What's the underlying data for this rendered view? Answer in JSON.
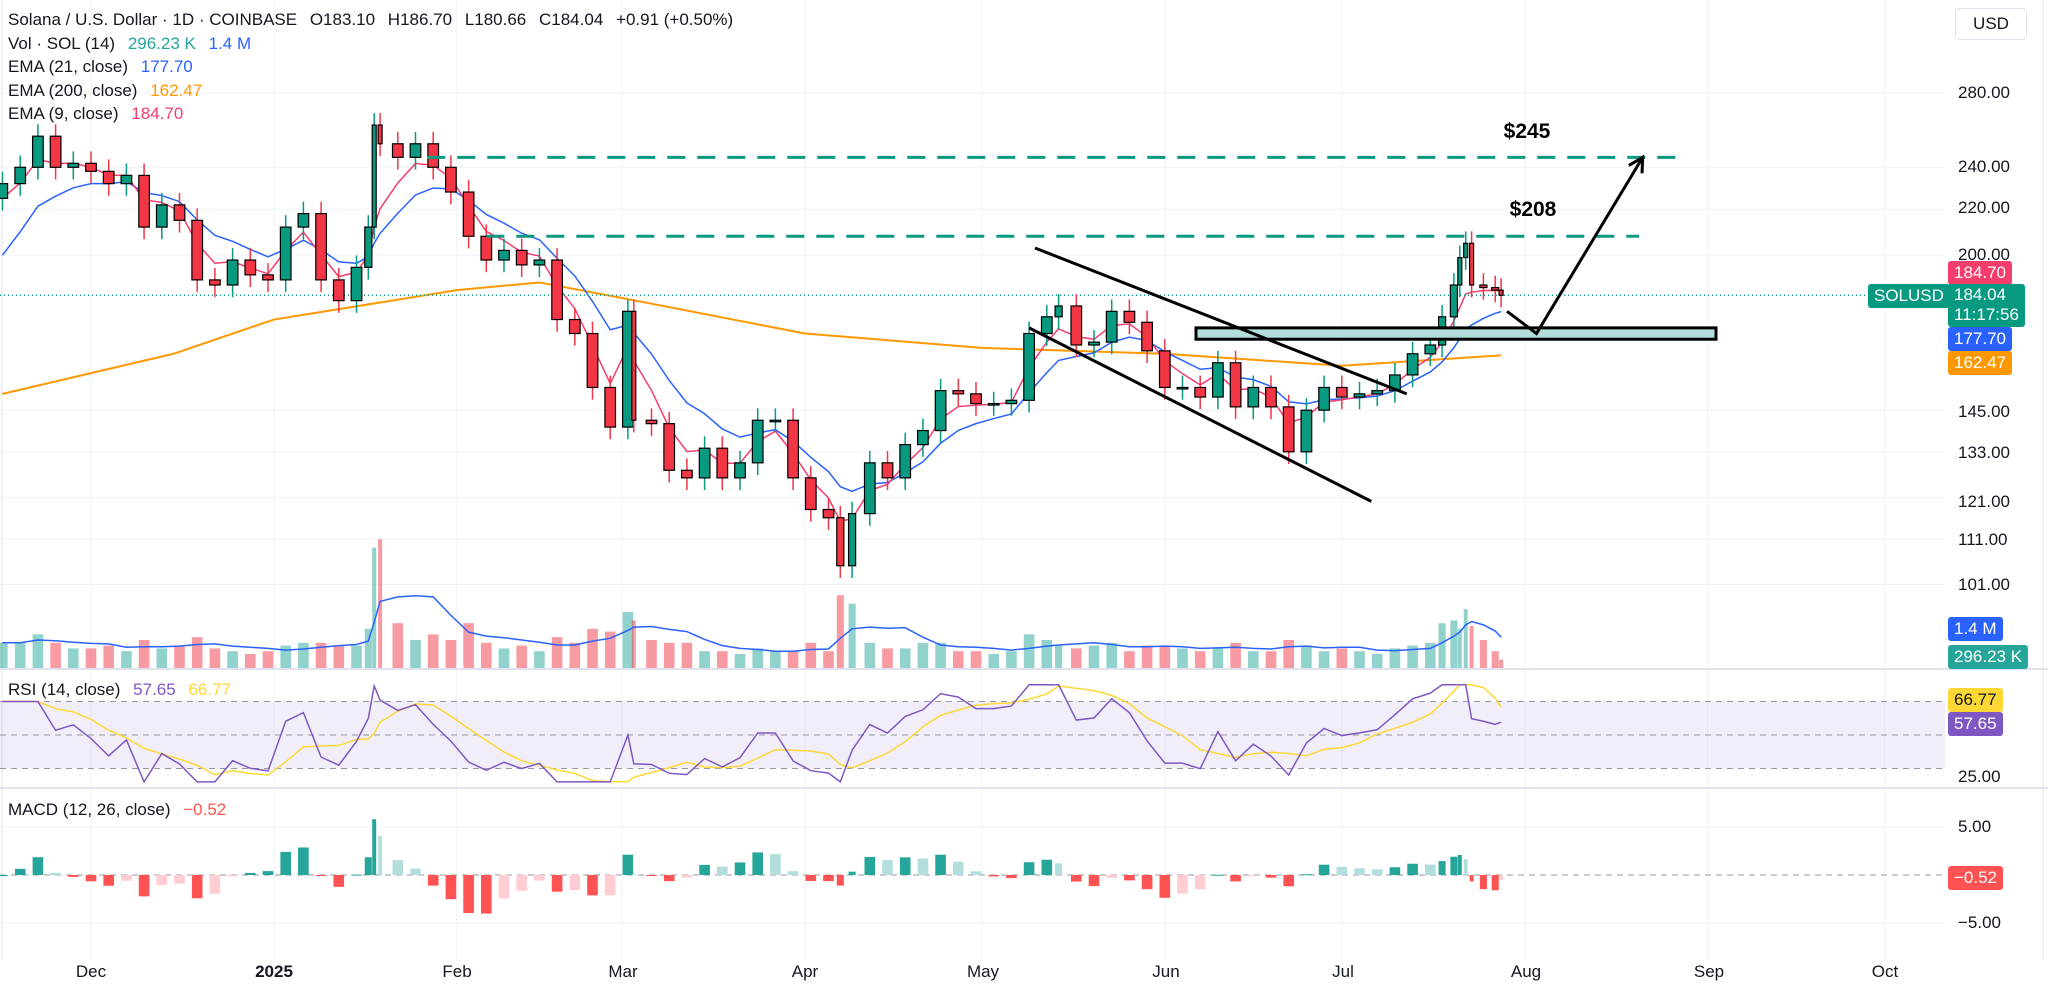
{
  "header": {
    "symbol_title": "Solana / U.S. Dollar · 1D · COINBASE",
    "open": "O183.10",
    "high": "H186.70",
    "low": "L180.66",
    "close": "C184.04",
    "change": "+0.91 (+0.50%)",
    "currency_button": "USD"
  },
  "legend": {
    "volume": {
      "label": "Vol · SOL (14)",
      "value": "296.23 K",
      "ma": "1.4 M"
    },
    "ema21": {
      "label": "EMA (21, close)",
      "value": "177.70"
    },
    "ema200": {
      "label": "EMA (200, close)",
      "value": "162.47"
    },
    "ema9": {
      "label": "EMA (9, close)",
      "value": "184.70"
    },
    "rsi": {
      "label": "RSI (14, close)",
      "value": "57.65",
      "ma": "66.77"
    },
    "macd": {
      "label": "MACD (12, 26, close)",
      "value": "−0.52"
    }
  },
  "price_tags": {
    "ema9": "184.70",
    "symbol": "SOLUSD",
    "last": "184.04",
    "countdown": "11:17:56",
    "ema21": "177.70",
    "ema200": "162.47",
    "vol_ma": "1.4 M",
    "vol": "296.23 K",
    "rsi_ma": "66.77",
    "rsi": "57.65",
    "macd": "−0.52"
  },
  "annotations": {
    "target_high": "$245",
    "target_mid": "$208"
  },
  "colors": {
    "up": "#089981",
    "down": "#f23645",
    "ema9": "#f23d6d",
    "ema21": "#2962ff",
    "ema200": "#ff9800",
    "rsi": "#7e57c2",
    "rsi_ma": "#fdd835",
    "annotation_line": "#089981",
    "zone": "#b2dfdb"
  },
  "chart_data": [
    {
      "type": "candlestick",
      "title": "Solana / U.S. Dollar · 1D · COINBASE",
      "y_scale": "log",
      "y_ticks": [
        "280.00",
        "240.00",
        "220.00",
        "200.00",
        "145.00",
        "133.00",
        "121.00",
        "111.00",
        "101.00"
      ],
      "x_ticks": [
        "Dec",
        "2025",
        "Feb",
        "Mar",
        "Apr",
        "May",
        "Jun",
        "Jul",
        "Aug",
        "Sep",
        "Oct"
      ],
      "grid": true,
      "series_close": [
        [
          "2024-11-16",
          232,
          0.9
        ],
        [
          "2024-11-19",
          240,
          0.9
        ],
        [
          "2024-11-22",
          256,
          1.2
        ],
        [
          "2024-11-25",
          240,
          0.9
        ],
        [
          "2024-11-28",
          242,
          0.7
        ],
        [
          "2024-12-01",
          238,
          0.7
        ],
        [
          "2024-12-04",
          232,
          0.8
        ],
        [
          "2024-12-07",
          236,
          0.6
        ],
        [
          "2024-12-10",
          212,
          1.0
        ],
        [
          "2024-12-13",
          222,
          0.7
        ],
        [
          "2024-12-16",
          215,
          0.8
        ],
        [
          "2024-12-19",
          190,
          1.1
        ],
        [
          "2024-12-22",
          188,
          0.7
        ],
        [
          "2024-12-25",
          198,
          0.6
        ],
        [
          "2024-12-28",
          192,
          0.5
        ],
        [
          "2024-12-31",
          190,
          0.6
        ],
        [
          "2025-01-03",
          212,
          0.8
        ],
        [
          "2025-01-06",
          218,
          0.9
        ],
        [
          "2025-01-09",
          190,
          0.9
        ],
        [
          "2025-01-12",
          182,
          0.8
        ],
        [
          "2025-01-15",
          195,
          0.8
        ],
        [
          "2025-01-17",
          212,
          1.4
        ],
        [
          "2025-01-18",
          262,
          4.3
        ],
        [
          "2025-01-19",
          252,
          4.6
        ],
        [
          "2025-01-22",
          245,
          1.6
        ],
        [
          "2025-01-25",
          252,
          1.0
        ],
        [
          "2025-01-28",
          240,
          1.2
        ],
        [
          "2025-01-31",
          228,
          1.0
        ],
        [
          "2025-02-03",
          208,
          1.6
        ],
        [
          "2025-02-06",
          198,
          0.9
        ],
        [
          "2025-02-09",
          202,
          0.7
        ],
        [
          "2025-02-12",
          196,
          0.8
        ],
        [
          "2025-02-15",
          198,
          0.6
        ],
        [
          "2025-02-18",
          175,
          1.1
        ],
        [
          "2025-02-21",
          170,
          0.9
        ],
        [
          "2025-02-24",
          152,
          1.4
        ],
        [
          "2025-02-27",
          140,
          1.3
        ],
        [
          "2025-03-02",
          178,
          2.0
        ],
        [
          "2025-03-03",
          142,
          1.7
        ],
        [
          "2025-03-06",
          141,
          1.0
        ],
        [
          "2025-03-09",
          128,
          0.9
        ],
        [
          "2025-03-12",
          126,
          0.9
        ],
        [
          "2025-03-15",
          134,
          0.6
        ],
        [
          "2025-03-18",
          126,
          0.6
        ],
        [
          "2025-03-21",
          130,
          0.5
        ],
        [
          "2025-03-24",
          142,
          0.7
        ],
        [
          "2025-03-27",
          142,
          0.6
        ],
        [
          "2025-03-30",
          126,
          0.6
        ],
        [
          "2025-04-02",
          118,
          0.9
        ],
        [
          "2025-04-05",
          116,
          0.6
        ],
        [
          "2025-04-07",
          105,
          2.6
        ],
        [
          "2025-04-09",
          117,
          2.3
        ],
        [
          "2025-04-12",
          130,
          0.9
        ],
        [
          "2025-04-15",
          126,
          0.7
        ],
        [
          "2025-04-18",
          135,
          0.7
        ],
        [
          "2025-04-21",
          139,
          0.9
        ],
        [
          "2025-04-24",
          151,
          0.9
        ],
        [
          "2025-04-27",
          150,
          0.6
        ],
        [
          "2025-04-30",
          147,
          0.6
        ],
        [
          "2025-05-03",
          147,
          0.5
        ],
        [
          "2025-05-06",
          148,
          0.6
        ],
        [
          "2025-05-09",
          170,
          1.2
        ],
        [
          "2025-05-12",
          176,
          1.0
        ],
        [
          "2025-05-14",
          180,
          0.8
        ],
        [
          "2025-05-17",
          166,
          0.7
        ],
        [
          "2025-05-20",
          167,
          0.8
        ],
        [
          "2025-05-23",
          178,
          0.9
        ],
        [
          "2025-05-26",
          174,
          0.6
        ],
        [
          "2025-05-29",
          164,
          0.8
        ],
        [
          "2025-06-01",
          152,
          0.8
        ],
        [
          "2025-06-04",
          152,
          0.7
        ],
        [
          "2025-06-07",
          149,
          0.6
        ],
        [
          "2025-06-10",
          160,
          0.7
        ],
        [
          "2025-06-13",
          146,
          0.9
        ],
        [
          "2025-06-16",
          152,
          0.6
        ],
        [
          "2025-06-19",
          146,
          0.6
        ],
        [
          "2025-06-22",
          133,
          1.0
        ],
        [
          "2025-06-25",
          145,
          0.8
        ],
        [
          "2025-06-28",
          152,
          0.6
        ],
        [
          "2025-07-01",
          149,
          0.7
        ],
        [
          "2025-07-04",
          150,
          0.6
        ],
        [
          "2025-07-07",
          151,
          0.5
        ],
        [
          "2025-07-10",
          156,
          0.7
        ],
        [
          "2025-07-13",
          163,
          0.8
        ],
        [
          "2025-07-16",
          166,
          0.9
        ],
        [
          "2025-07-18",
          176,
          1.6
        ],
        [
          "2025-07-20",
          188,
          1.7
        ],
        [
          "2025-07-21",
          199,
          1.4
        ],
        [
          "2025-07-22",
          205,
          2.1
        ],
        [
          "2025-07-23",
          188,
          1.5
        ],
        [
          "2025-07-25",
          187,
          1.0
        ],
        [
          "2025-07-27",
          186,
          0.6
        ],
        [
          "2025-07-28",
          184.04,
          0.3
        ]
      ],
      "series_columns": [
        "date",
        "close",
        "volume_millions"
      ],
      "ema200": [
        [
          "2024-11-16",
          150
        ],
        [
          "2024-12-15",
          163
        ],
        [
          "2025-01-01",
          175
        ],
        [
          "2025-02-01",
          186
        ],
        [
          "2025-02-15",
          189
        ],
        [
          "2025-03-01",
          183
        ],
        [
          "2025-04-01",
          170
        ],
        [
          "2025-05-01",
          165
        ],
        [
          "2025-06-01",
          163
        ],
        [
          "2025-07-01",
          159
        ],
        [
          "2025-07-28",
          162.47
        ]
      ],
      "levels": [
        {
          "label": "$245",
          "price": 245
        },
        {
          "label": "$208",
          "price": 208
        }
      ],
      "support_zone": [
        168,
        172
      ],
      "channel": {
        "upper": [
          [
            "2025-05-10",
            203
          ],
          [
            "2025-07-12",
            150
          ]
        ],
        "lower": [
          [
            "2025-05-09",
            172
          ],
          [
            "2025-07-06",
            120
          ]
        ]
      },
      "projection": [
        [
          "2025-07-29",
          178
        ],
        [
          "2025-08-03",
          170
        ],
        [
          "2025-08-21",
          245
        ]
      ]
    },
    {
      "type": "line",
      "title": "RSI (14, close)",
      "ylim": [
        25,
        75
      ],
      "bands": [
        30,
        50,
        70
      ],
      "y_ticks": [
        "25.00"
      ],
      "last": 57.65,
      "ma_last": 66.77
    },
    {
      "type": "bar",
      "title": "MACD (12, 26, close)",
      "y_ticks": [
        "5.00",
        "−5.00"
      ],
      "last": -0.52
    }
  ]
}
